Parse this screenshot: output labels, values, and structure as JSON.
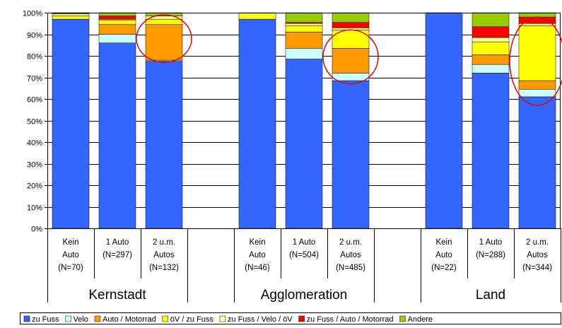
{
  "chart_data": {
    "type": "bar",
    "stacked": true,
    "ylim": [
      0,
      100
    ],
    "y_ticks": [
      "0%",
      "10%",
      "20%",
      "30%",
      "40%",
      "50%",
      "60%",
      "70%",
      "80%",
      "90%",
      "100%"
    ],
    "grid": true,
    "groups": [
      {
        "name": "Kernstadt",
        "categories": [
          {
            "lines": [
              "Kein",
              "Auto",
              "(N=70)"
            ]
          },
          {
            "lines": [
              "1 Auto",
              "(N=297)"
            ]
          },
          {
            "lines": [
              "2 u.m.",
              "Autos",
              "(N=132)"
            ]
          }
        ]
      },
      {
        "name": "Agglomeration",
        "categories": [
          {
            "lines": [
              "Kein",
              "Auto",
              "(N=46)"
            ]
          },
          {
            "lines": [
              "1 Auto",
              "(N=504)"
            ]
          },
          {
            "lines": [
              "2 u.m.",
              "Autos",
              "(N=485)"
            ]
          }
        ]
      },
      {
        "name": "Land",
        "categories": [
          {
            "lines": [
              "Kein",
              "Auto",
              "(N=22)"
            ]
          },
          {
            "lines": [
              "1 Auto",
              "(N=288)"
            ]
          },
          {
            "lines": [
              "2 u.m.",
              "Autos",
              "(N=344)"
            ]
          }
        ]
      }
    ],
    "series": [
      {
        "name": "zu Fuss",
        "color": "#3366ff",
        "values": [
          97,
          86,
          77.5,
          97,
          78.5,
          68.5,
          100,
          72,
          61
        ]
      },
      {
        "name": "Velo",
        "color": "#ccffff",
        "values": [
          0,
          4,
          0.5,
          0,
          5,
          3.5,
          0,
          4,
          3.5
        ]
      },
      {
        "name": "Auto / Motorrad",
        "color": "#ff9900",
        "values": [
          0,
          4.5,
          16.5,
          0,
          7.5,
          11.5,
          0,
          4.5,
          4
        ]
      },
      {
        "name": "öV / zu Fuss",
        "color": "#ffff00",
        "values": [
          1.5,
          2,
          2.5,
          3,
          3,
          8.5,
          0,
          6,
          25.5
        ]
      },
      {
        "name": "zu Fuss / Velo / öV",
        "color": "#ffff99",
        "values": [
          1,
          0.5,
          1.5,
          0,
          1,
          1,
          0,
          2,
          1
        ]
      },
      {
        "name": "zu Fuss / Auto / Motorrad",
        "color": "#ff0000",
        "values": [
          0,
          1.5,
          0,
          0,
          0.5,
          2.5,
          0,
          5,
          3
        ]
      },
      {
        "name": "Andere",
        "color": "#99cc00",
        "values": [
          0.5,
          1.5,
          1.5,
          0,
          4.5,
          4.5,
          0,
          6.5,
          2
        ]
      }
    ],
    "highlight_color": "#e00000",
    "highlights": [
      {
        "bar": 2,
        "from": 77,
        "to": 99
      },
      {
        "bar": 5,
        "from": 67,
        "to": 92
      },
      {
        "bar": 8,
        "from": 57,
        "to": 98
      }
    ],
    "legend_position": "bottom"
  }
}
